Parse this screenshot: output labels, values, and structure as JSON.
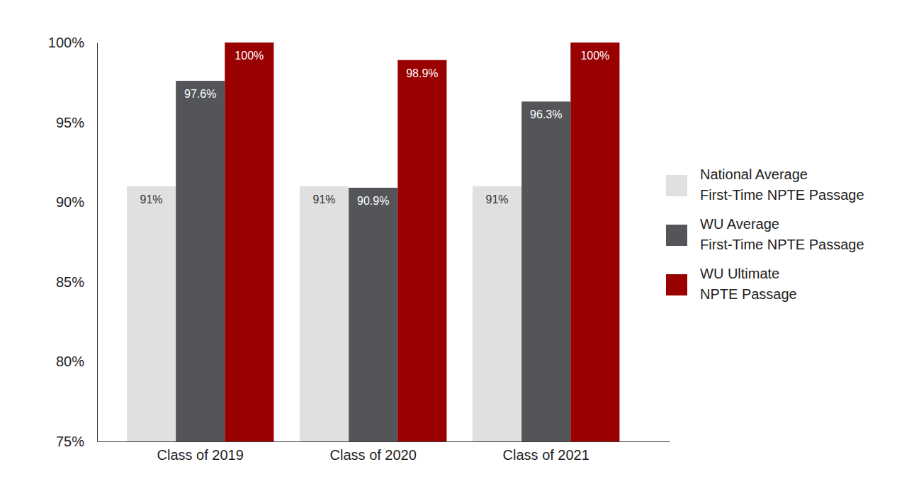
{
  "chart_data": {
    "type": "bar",
    "categories": [
      "Class of 2019",
      "Class of 2020",
      "Class of 2021"
    ],
    "series": [
      {
        "name": "National Average\nFirst-Time NPTE Passage",
        "color": "#e0e0e0",
        "values": [
          91,
          91,
          91
        ],
        "value_labels": [
          "91%",
          "91%",
          "91%"
        ]
      },
      {
        "name": "WU Average\nFirst-Time NPTE Passage",
        "color": "#535559",
        "values": [
          97.6,
          90.9,
          96.3
        ],
        "value_labels": [
          "97.6%",
          "90.9%",
          "96.3%"
        ]
      },
      {
        "name": "WU Ultimate\nNPTE Passage",
        "color": "#990000",
        "values": [
          100,
          98.9,
          100
        ],
        "value_labels": [
          "100%",
          "98.9%",
          "100%"
        ]
      }
    ],
    "ylim": [
      75,
      100
    ],
    "yticks": [
      {
        "value": 75,
        "label": "75%"
      },
      {
        "value": 80,
        "label": "80%"
      },
      {
        "value": 85,
        "label": "85%"
      },
      {
        "value": 90,
        "label": "90%"
      },
      {
        "value": 95,
        "label": "95%"
      },
      {
        "value": 100,
        "label": "100%"
      }
    ],
    "data_labels": true,
    "legend": "right",
    "grid": false
  }
}
